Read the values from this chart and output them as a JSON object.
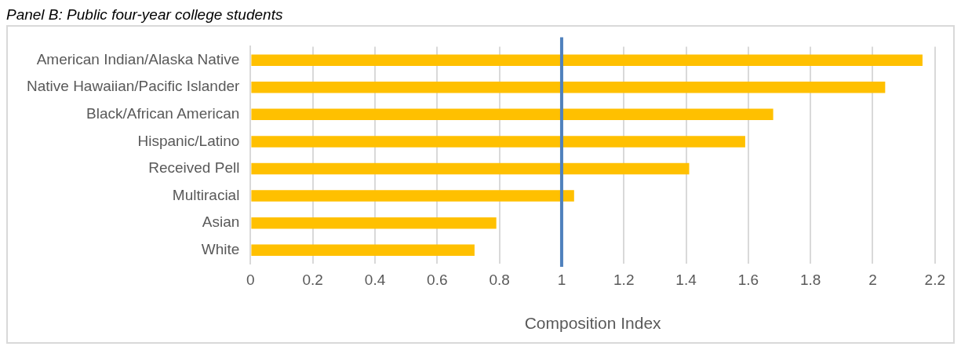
{
  "chart_data": {
    "type": "bar",
    "orientation": "horizontal",
    "title": "Panel B: Public four-year college students",
    "xlabel": "Composition Index",
    "categories": [
      "American Indian/Alaska Native",
      "Native Hawaiian/Pacific Islander",
      "Black/African American",
      "Hispanic/Latino",
      "Received Pell",
      "Multiracial",
      "Asian",
      "White"
    ],
    "values": [
      2.16,
      2.04,
      1.68,
      1.59,
      1.41,
      1.04,
      0.79,
      0.72
    ],
    "color": "#ffc000",
    "xlim": [
      0,
      2.2
    ],
    "xticks": [
      0,
      0.2,
      0.4,
      0.6,
      0.8,
      1,
      1.2,
      1.4,
      1.6,
      1.8,
      2,
      2.2
    ],
    "grid": "x",
    "legend": false,
    "ref_lines": [
      {
        "axis": "x",
        "value": 1,
        "color": "#4f81bd"
      }
    ]
  }
}
